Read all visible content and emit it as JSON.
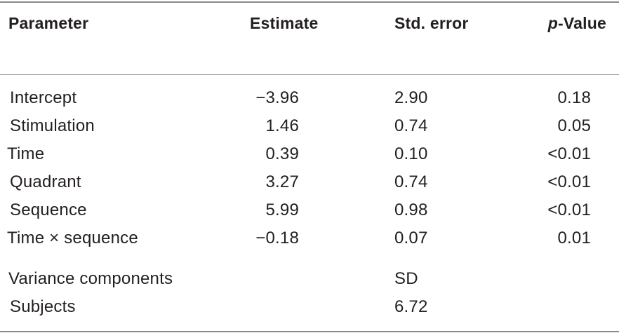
{
  "table": {
    "headers": {
      "parameter": "Parameter",
      "estimate": "Estimate",
      "std_error": "Std. error",
      "p_value_italic": "p",
      "p_value_rest": "-Value"
    },
    "rows": [
      {
        "parameter": "Intercept",
        "estimate": "−3.96",
        "std_error": "2.90",
        "p_value": "0.18"
      },
      {
        "parameter": "Stimulation",
        "estimate": "1.46",
        "std_error": "0.74",
        "p_value": "0.05"
      },
      {
        "parameter": "Time",
        "estimate": "0.39",
        "std_error": "0.10",
        "p_value": "<0.01"
      },
      {
        "parameter": "Quadrant",
        "estimate": "3.27",
        "std_error": "0.74",
        "p_value": "<0.01"
      },
      {
        "parameter": "Sequence",
        "estimate": "5.99",
        "std_error": "0.98",
        "p_value": "<0.01"
      },
      {
        "parameter": "Time × sequence",
        "estimate": "−0.18",
        "std_error": "0.07",
        "p_value": "0.01"
      }
    ],
    "variance": {
      "label": "Variance components",
      "sd_label": "SD",
      "subjects_label": "Subjects",
      "subjects_sd": "6.72"
    }
  }
}
